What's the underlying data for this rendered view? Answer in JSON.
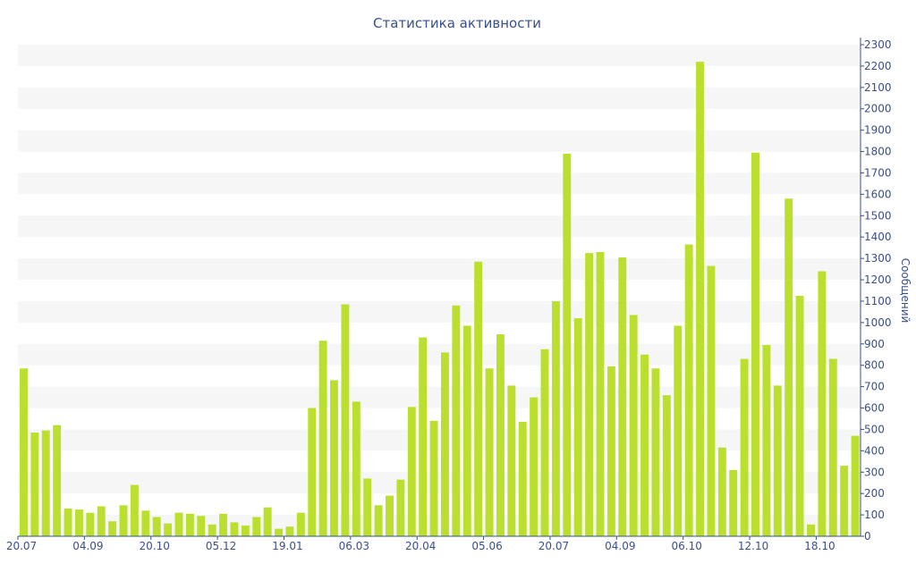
{
  "chart_data": {
    "type": "bar",
    "title": "Статистика активности",
    "xlabel": "",
    "ylabel": "Сообщений",
    "ylim": [
      0,
      2300
    ],
    "y_ticks": [
      0,
      100,
      200,
      300,
      400,
      500,
      600,
      700,
      800,
      900,
      1000,
      1100,
      1200,
      1300,
      1400,
      1500,
      1600,
      1700,
      1800,
      1900,
      2000,
      2100,
      2200,
      2300
    ],
    "y_axis_side": "right",
    "grid": "alternating horizontal bands",
    "legend": "none",
    "x_tick_labels": [
      {
        "label": "20.07",
        "index": 0
      },
      {
        "label": "04.09",
        "index": 6
      },
      {
        "label": "20.10",
        "index": 12
      },
      {
        "label": "05.12",
        "index": 18
      },
      {
        "label": "19.01",
        "index": 24
      },
      {
        "label": "06.03",
        "index": 30
      },
      {
        "label": "20.04",
        "index": 36
      },
      {
        "label": "05.06",
        "index": 42
      },
      {
        "label": "20.07",
        "index": 48
      },
      {
        "label": "04.09",
        "index": 54
      },
      {
        "label": "06.10",
        "index": 60
      },
      {
        "label": "12.10",
        "index": 66
      },
      {
        "label": "18.10",
        "index": 72
      }
    ],
    "values": [
      785,
      485,
      495,
      520,
      130,
      125,
      110,
      140,
      70,
      145,
      240,
      120,
      90,
      60,
      110,
      105,
      95,
      55,
      105,
      65,
      50,
      90,
      135,
      35,
      45,
      110,
      600,
      915,
      730,
      1085,
      630,
      270,
      145,
      190,
      265,
      605,
      930,
      540,
      860,
      1080,
      985,
      1285,
      785,
      945,
      705,
      535,
      650,
      875,
      1100,
      1790,
      1020,
      1325,
      1330,
      795,
      1305,
      1035,
      850,
      785,
      660,
      985,
      1365,
      2220,
      1265,
      415,
      310,
      830,
      1795,
      895,
      705,
      1580,
      1125,
      55,
      1240,
      830,
      330,
      470
    ],
    "bar_color": "#badf2f",
    "band_color": "#f6f6f6",
    "text_color": "#3a4f8c"
  }
}
